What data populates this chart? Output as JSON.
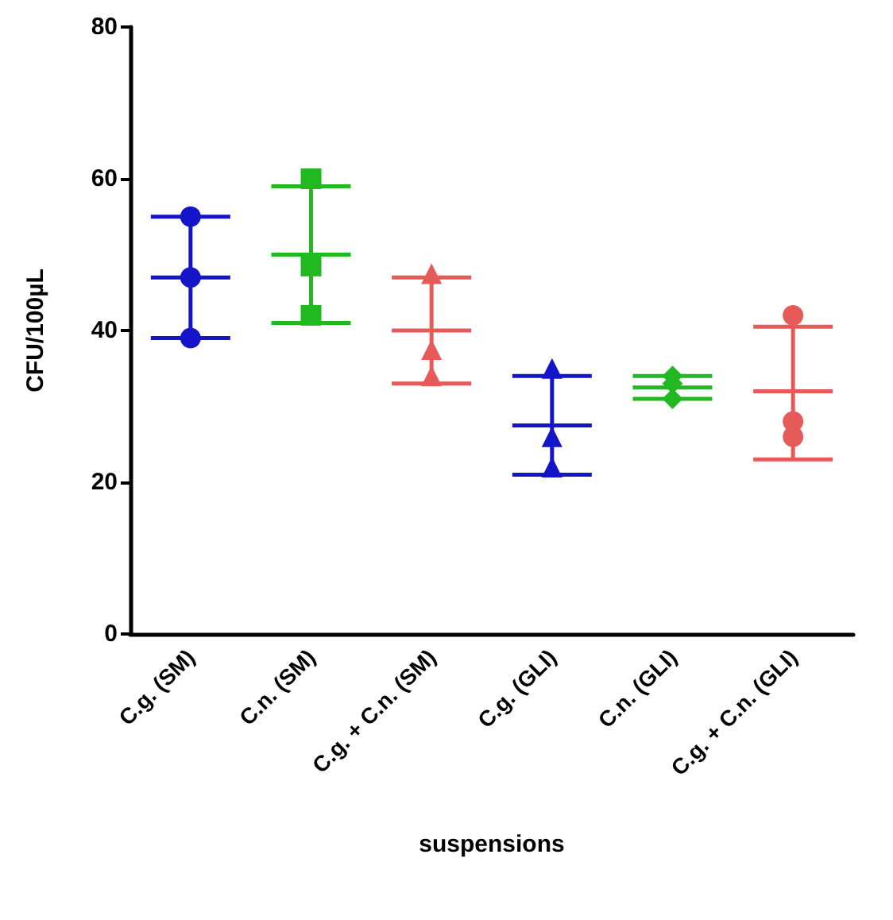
{
  "chart_data": {
    "type": "scatter",
    "xlabel": "suspensions",
    "ylabel": "CFU/100µL",
    "categories": [
      "C.g. (SM)",
      "C.n. (SM)",
      "C.g. + C.n. (SM)",
      "C.g. (GLI)",
      "C.n. (GLI)",
      "C.g. + C.n. (GLI)"
    ],
    "ylim": [
      0,
      80
    ],
    "yticks": [
      0,
      20,
      40,
      60,
      80
    ],
    "grid": false,
    "series": [
      {
        "type": "box",
        "colors": [
          "#1414c8",
          "#22b822",
          "#e65a5a",
          "#1414c8",
          "#22b822",
          "#e65a5a"
        ],
        "boxes": [
          {
            "low": 39,
            "q1": 47,
            "median": 47,
            "q3": 47,
            "high": 55
          },
          {
            "low": 41,
            "q1": 50,
            "median": 50,
            "q3": 50,
            "high": 59
          },
          {
            "low": 33,
            "q1": 40,
            "median": 40,
            "q3": 40,
            "high": 47
          },
          {
            "low": 21,
            "q1": 27.5,
            "median": 27.5,
            "q3": 27.5,
            "high": 34
          },
          {
            "low": 31,
            "q1": 32.5,
            "median": 32.5,
            "q3": 32.5,
            "high": 34
          },
          {
            "low": 23,
            "q1": 32,
            "median": 32,
            "q3": 32,
            "high": 40.5
          }
        ]
      },
      {
        "marker": "circle",
        "color": "#1414c8",
        "x": [
          "C.g. (SM)",
          "C.g. (SM)",
          "C.g. (SM)"
        ],
        "values": [
          55,
          47,
          39
        ]
      },
      {
        "marker": "square",
        "color": "#22b822",
        "x": [
          "C.n. (SM)",
          "C.n. (SM)",
          "C.n. (SM)"
        ],
        "values": [
          60,
          48.5,
          42
        ]
      },
      {
        "marker": "triangle",
        "color": "#e65a5a",
        "x": [
          "C.g. + C.n. (SM)",
          "C.g. + C.n. (SM)",
          "C.g. + C.n. (SM)"
        ],
        "values": [
          47.5,
          37.5,
          34
        ]
      },
      {
        "marker": "triangle",
        "color": "#1414c8",
        "x": [
          "C.g. (GLI)",
          "C.g. (GLI)",
          "C.g. (GLI)"
        ],
        "values": [
          35,
          26,
          22
        ]
      },
      {
        "marker": "diamond",
        "color": "#22b822",
        "x": [
          "C.n. (GLI)",
          "C.n. (GLI)",
          "C.n. (GLI)"
        ],
        "values": [
          34,
          33,
          31
        ]
      },
      {
        "marker": "circle",
        "color": "#e65a5a",
        "x": [
          "C.g. + C.n. (GLI)",
          "C.g. + C.n. (GLI)",
          "C.g. + C.n. (GLI)"
        ],
        "values": [
          42,
          26,
          28
        ]
      }
    ]
  }
}
